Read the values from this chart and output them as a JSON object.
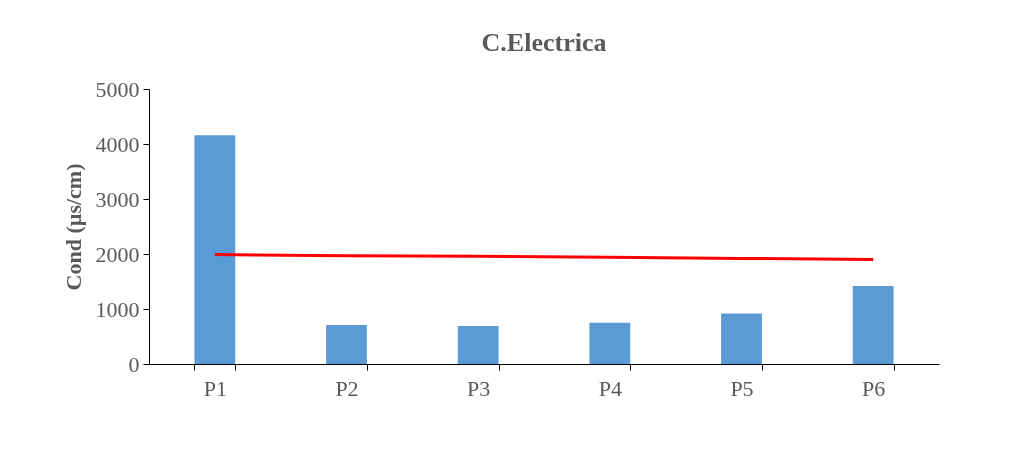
{
  "chart_data": {
    "type": "bar",
    "title": "C.Electrica",
    "ylabel": "Cond (µs/cm)",
    "categories": [
      "P1",
      "P2",
      "P3",
      "P4",
      "P5",
      "P6"
    ],
    "series": [
      {
        "color": "#5b9bd5",
        "values": [
          4160,
          710,
          690,
          750,
          920,
          1420
        ]
      },
      {
        "type": "line",
        "color": "#ff0000",
        "values": [
          1990,
          1970,
          1960,
          1940,
          1920,
          1900
        ]
      }
    ],
    "ylim": [
      0,
      5000
    ],
    "yticks": [
      0,
      1000,
      2000,
      3000,
      4000,
      5000
    ],
    "grid": false
  }
}
